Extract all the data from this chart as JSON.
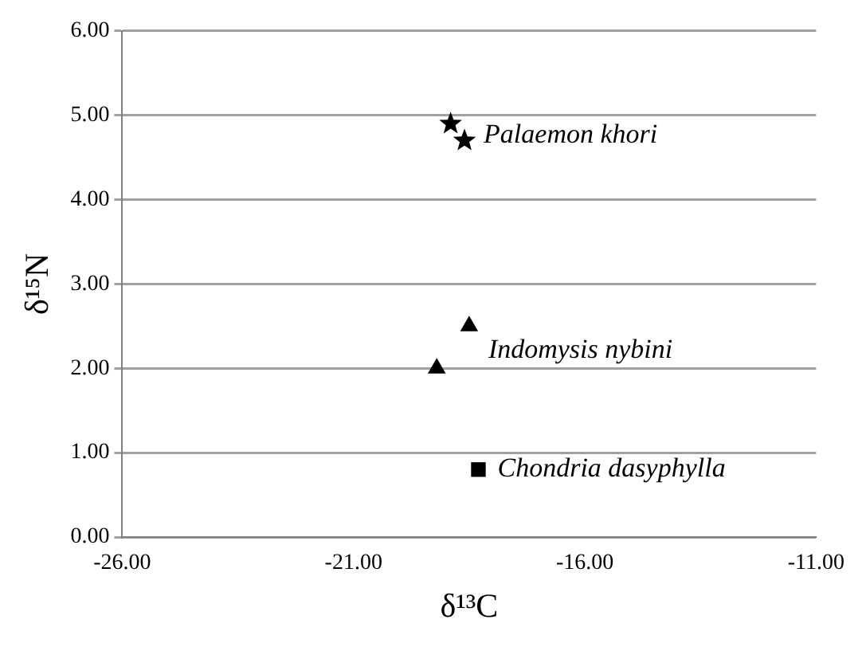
{
  "chart_data": {
    "type": "scatter",
    "xlabel": "δ¹³C",
    "ylabel": "δ¹⁵N",
    "xlim": [
      -26,
      -11
    ],
    "xticks": [
      {
        "value": -26,
        "label": "-26.00"
      },
      {
        "value": -21,
        "label": "-21.00"
      },
      {
        "value": -16,
        "label": "-16.00"
      },
      {
        "value": -11,
        "label": "-11.00"
      }
    ],
    "ylim": [
      0,
      6
    ],
    "yticks": [
      {
        "value": 0,
        "label": "0.00"
      },
      {
        "value": 1,
        "label": "1.00"
      },
      {
        "value": 2,
        "label": "2.00"
      },
      {
        "value": 3,
        "label": "3.00"
      },
      {
        "value": 4,
        "label": "4.00"
      },
      {
        "value": 5,
        "label": "5.00"
      },
      {
        "value": 6,
        "label": "6.00"
      }
    ],
    "grid": "y",
    "series": [
      {
        "name": "Palaemon khori",
        "color": "#000000",
        "marker": "star",
        "x": [
          -18.9,
          -18.6
        ],
        "values": [
          4.9,
          4.7
        ]
      },
      {
        "name": "Indomysis nybini",
        "color": "#000000",
        "marker": "triangle",
        "x": [
          -18.5,
          -19.2
        ],
        "values": [
          2.5,
          2.0
        ]
      },
      {
        "name": "Chondria dasyphylla",
        "color": "#000000",
        "marker": "square",
        "x": [
          -18.3
        ],
        "values": [
          0.8
        ]
      }
    ]
  }
}
